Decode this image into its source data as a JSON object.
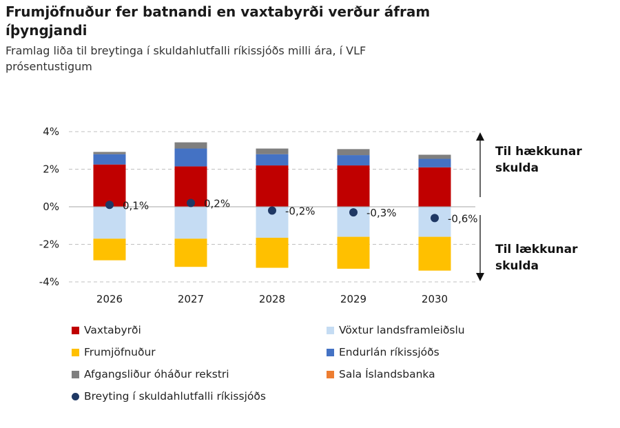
{
  "header": {
    "title": "Frumjöfnuður fer batnandi en vaxtabyrði verður áfram íþyngjandi",
    "subtitle": "Framlag liða til breytinga í skuldahlutfalli ríkissjóðs milli ára, í VLF prósentustigum"
  },
  "chart_data": {
    "type": "bar",
    "stacked": true,
    "title": "Frumjöfnuður fer batnandi en vaxtabyrði verður áfram íþyngjandi",
    "subtitle": "Framlag liða til breytinga í skuldahlutfalli ríkissjóðs milli ára, í VLF prósentustigum",
    "categories": [
      "2026",
      "2027",
      "2028",
      "2029",
      "2030"
    ],
    "ylim": [
      -4,
      4
    ],
    "yticks": [
      4,
      2,
      0,
      -2,
      -4
    ],
    "ytick_labels": [
      "4%",
      "2%",
      "0%",
      "-2%",
      "-4%"
    ],
    "grid": true,
    "series": [
      {
        "name": "Vaxtabyrði",
        "color": "#c00000",
        "values": [
          2.25,
          2.15,
          2.2,
          2.2,
          2.1
        ]
      },
      {
        "name": "Endurlán ríkissjóðs",
        "color": "#4472c4",
        "values": [
          0.55,
          0.95,
          0.6,
          0.55,
          0.45
        ]
      },
      {
        "name": "Afgangsliður óháður rekstri",
        "color": "#7f7f7f",
        "values": [
          0.12,
          0.33,
          0.3,
          0.32,
          0.22
        ]
      },
      {
        "name": "Vöxtur landsframleiðslu",
        "color": "#c5dcf3",
        "values": [
          -1.7,
          -1.7,
          -1.65,
          -1.6,
          -1.6
        ]
      },
      {
        "name": "Frumjöfnuður",
        "color": "#ffc000",
        "values": [
          -1.15,
          -1.5,
          -1.6,
          -1.7,
          -1.8
        ]
      },
      {
        "name": "Sala Íslandsbanka",
        "color": "#ed7d31",
        "values": [
          0,
          0,
          0,
          0,
          0
        ]
      }
    ],
    "line_series": {
      "name": "Breyting í skuldahlutfalli ríkissjóðs",
      "color": "#1f3864",
      "values": [
        0.1,
        0.2,
        -0.2,
        -0.3,
        -0.6
      ],
      "labels": [
        "0,1%",
        "0,2%",
        "-0,2%",
        "-0,3%",
        "-0,6%"
      ]
    },
    "annotations": {
      "up": "Til hækkunar skulda",
      "down": "Til lækkunar skulda"
    },
    "legend": {
      "position": "bottom",
      "items": [
        {
          "label": "Vaxtabyrði",
          "color": "#c00000",
          "marker": "square"
        },
        {
          "label": "Vöxtur landsframleiðslu",
          "color": "#c5dcf3",
          "marker": "square"
        },
        {
          "label": "Frumjöfnuður",
          "color": "#ffc000",
          "marker": "square"
        },
        {
          "label": "Endurlán ríkissjóðs",
          "color": "#4472c4",
          "marker": "square"
        },
        {
          "label": "Afgangsliður óháður rekstri",
          "color": "#7f7f7f",
          "marker": "square"
        },
        {
          "label": "Sala Íslandsbanka",
          "color": "#ed7d31",
          "marker": "square"
        },
        {
          "label": "Breyting í skuldahlutfalli ríkissjóðs",
          "color": "#1f3864",
          "marker": "circle"
        }
      ]
    }
  }
}
